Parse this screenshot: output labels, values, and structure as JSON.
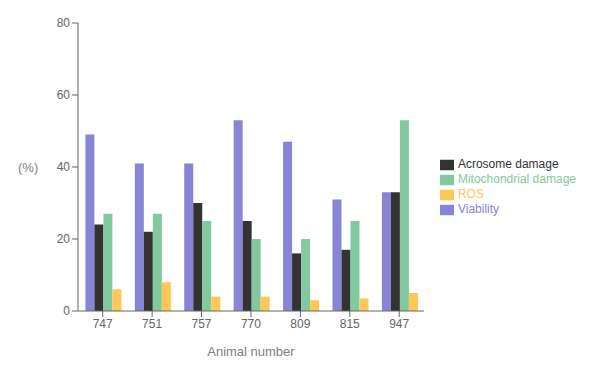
{
  "chart_data": {
    "type": "bar",
    "categories": [
      "747",
      "751",
      "757",
      "770",
      "809",
      "815",
      "947"
    ],
    "series": [
      {
        "name": "Viability",
        "color": "#8884d8",
        "values": [
          49,
          41,
          41,
          53,
          47,
          31,
          33
        ]
      },
      {
        "name": "Acrosome damage",
        "color": "#333333",
        "values": [
          24,
          22,
          30,
          25,
          16,
          17,
          33
        ]
      },
      {
        "name": "Mitochondrial damage",
        "color": "#82ca9d",
        "values": [
          27,
          27,
          25,
          20,
          20,
          25,
          53
        ]
      },
      {
        "name": "ROS",
        "color": "#ffc658",
        "values": [
          6,
          8,
          4,
          4,
          3,
          3.5,
          5
        ]
      }
    ],
    "xlabel": "Animal number",
    "ylabel": "(%)",
    "ylim": [
      0,
      80
    ],
    "yticks": [
      0,
      20,
      40,
      60,
      80
    ],
    "grid": false,
    "legend": "right"
  }
}
